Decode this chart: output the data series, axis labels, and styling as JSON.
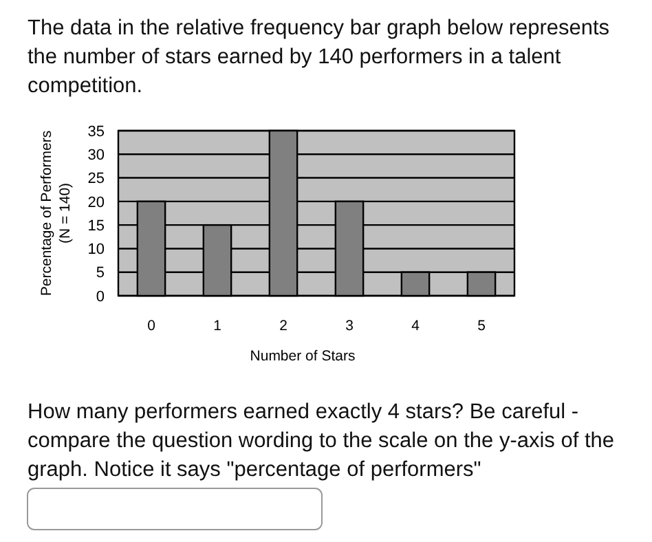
{
  "chart_data": {
    "type": "bar",
    "title": "The data in the relative frequency bar graph below represents the number of stars earned by 140 performers in a talent competition.",
    "xlabel": "Number of Stars",
    "ylabel": "Percentage of Performers\n(N = 140)",
    "categories": [
      "0",
      "1",
      "2",
      "3",
      "4",
      "5"
    ],
    "values": [
      20,
      15,
      35,
      20,
      5,
      5
    ],
    "color": "#808080",
    "ylim": [
      0,
      35
    ],
    "yticks": [
      0,
      5,
      10,
      15,
      20,
      25,
      30,
      35
    ],
    "grid": "y",
    "annotations": [
      "How many performers earned exactly 4 stars? Be careful - compare the question wording to the scale on the y-axis of the graph. Notice it says \"percentage of performers\""
    ]
  }
}
